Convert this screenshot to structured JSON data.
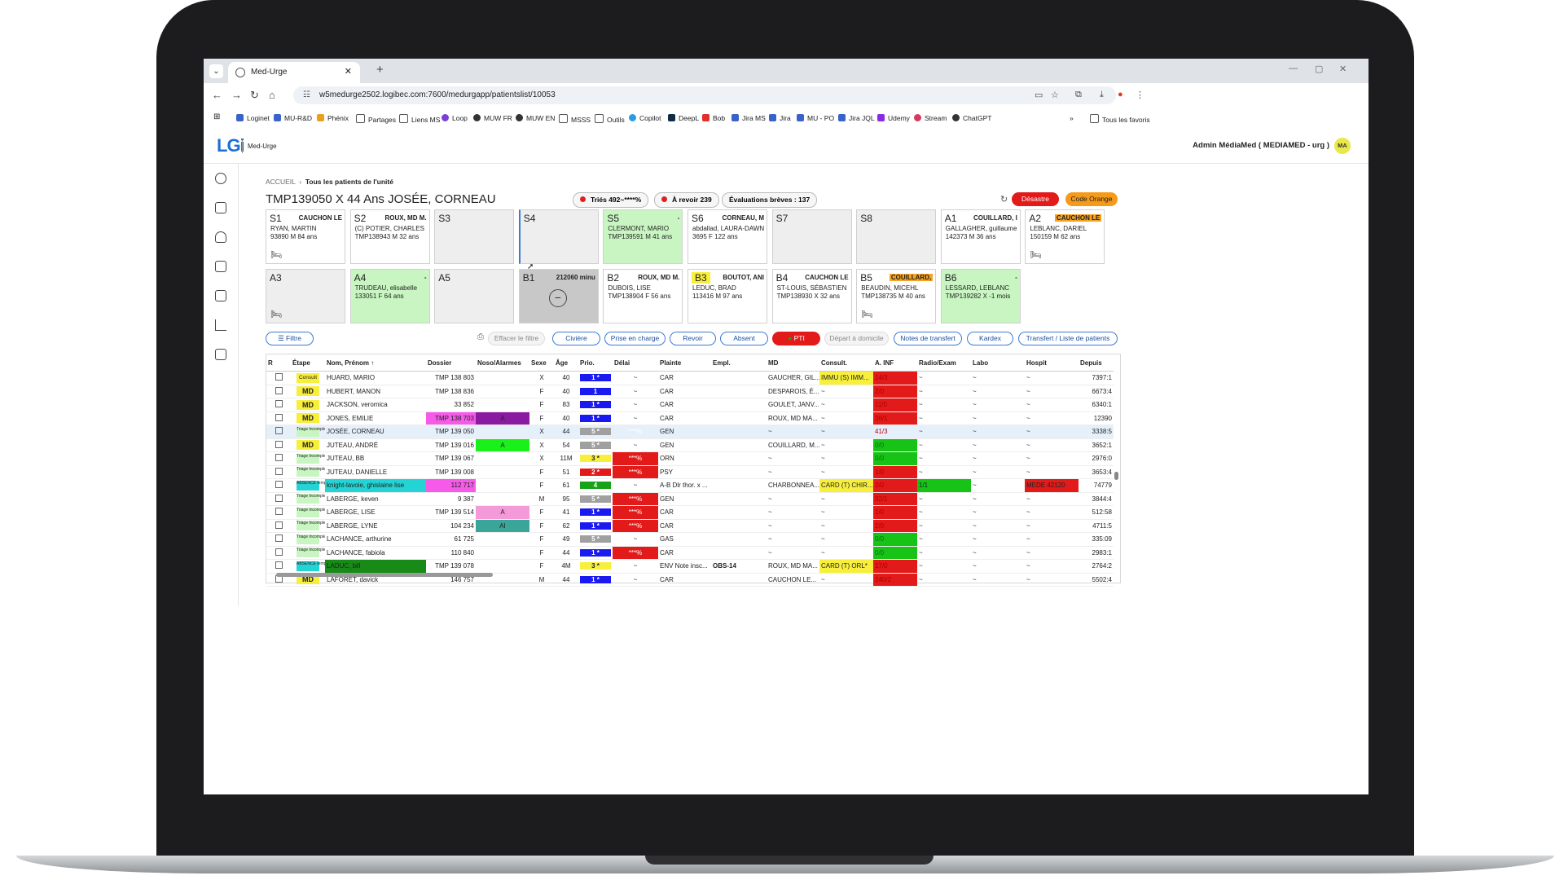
{
  "browser": {
    "tab_title": "Med-Urge",
    "url": "w5medurge2502.logibec.com:7600/medurgapp/patientslist/10053",
    "bookmarks": [
      "Loginet",
      "MU-R&D",
      "Phénix",
      "Partages",
      "Liens MS",
      "Loop",
      "MUW FR",
      "MUW EN",
      "MSSS",
      "Outils",
      "Copilot",
      "DeepL",
      "Bob",
      "Jira MS",
      "Jira",
      "MU - PO",
      "Jira JQL",
      "Udemy",
      "Stream",
      "ChatGPT"
    ],
    "all_favorites": "Tous les favoris"
  },
  "app": {
    "logo": "LGi",
    "name": "Med-Urge",
    "user": "Admin MédiaMed ( MEDIAMED - urg )",
    "avatar": "MA"
  },
  "breadcrumb": {
    "home": "ACCUEIL",
    "current": "Tous les patients de l'unité"
  },
  "page_title": "TMP139050 X 44 Ans JOSÉE, CORNEAU",
  "pills": {
    "tries": "Triés 492~****%",
    "revoir": "À revoir 239",
    "evaluations": "Évaluations brèves : 137"
  },
  "buttons": {
    "desastre": "Désastre",
    "code_orange": "Code Orange"
  },
  "beds_row1": [
    {
      "code": "S1",
      "doc": "CAUCHON LE",
      "l1": "RYAN, MARTIN",
      "l2": "93890    M  84 ans",
      "state": "normal",
      "icon": true
    },
    {
      "code": "S2",
      "doc": "ROUX, MD M.",
      "l1": "(C) POTIER, CHARLES",
      "l2": "TMP138943   M  32 ans",
      "state": "normal",
      "icon": false
    },
    {
      "code": "S3",
      "doc": "",
      "l1": "",
      "l2": "",
      "state": "empty",
      "icon": false
    },
    {
      "code": "S4",
      "doc": "",
      "l1": "",
      "l2": "",
      "state": "empty",
      "icon": false
    },
    {
      "code": "S5",
      "doc": "-",
      "l1": "CLERMONT, MARIO",
      "l2": "TMP139591   M  41 ans",
      "state": "green",
      "icon": false
    },
    {
      "code": "S6",
      "doc": "CORNEAU, M",
      "l1": "abdallad, LAURA-DAWN",
      "l2": "3695     F  122 ans",
      "state": "normal",
      "icon": false
    },
    {
      "code": "S7",
      "doc": "",
      "l1": "",
      "l2": "",
      "state": "empty",
      "icon": false
    },
    {
      "code": "S8",
      "doc": "",
      "l1": "",
      "l2": "",
      "state": "empty",
      "icon": false
    },
    {
      "code": "A1",
      "doc": "COUILLARD, I",
      "l1": "GALLAGHER, guillaume",
      "l2": "142373    M  36 ans",
      "state": "normal",
      "icon": false
    },
    {
      "code": "A2",
      "doc": "CAUCHON LE",
      "l1": "LEBLANC, DARIEL",
      "l2": "150159    M  62 ans",
      "state": "normal",
      "icon": true,
      "doc_color": "orange"
    }
  ],
  "beds_row2": [
    {
      "code": "A3",
      "doc": "",
      "l1": "",
      "l2": "",
      "state": "empty",
      "icon": true
    },
    {
      "code": "A4",
      "doc": "-",
      "l1": "TRUDEAU, elisabelle",
      "l2": "133051    F  64 ans",
      "state": "green",
      "icon": false
    },
    {
      "code": "A5",
      "doc": "",
      "l1": "",
      "l2": "",
      "state": "empty",
      "icon": false
    },
    {
      "code": "B1",
      "doc": "212060 minu",
      "l1": "",
      "l2": "",
      "state": "gray",
      "icon": false
    },
    {
      "code": "B2",
      "doc": "ROUX, MD M.",
      "l1": "DUBOIS, LISE",
      "l2": "TMP138904   F  56 ans",
      "state": "normal",
      "icon": false
    },
    {
      "code": "B3",
      "doc": "BOUTOT, ANI",
      "l1": "LEDUC, BRAD",
      "l2": "113416    M  97 ans",
      "state": "normal",
      "icon": false,
      "code_color": "yellow"
    },
    {
      "code": "B4",
      "doc": "CAUCHON LE",
      "l1": "ST-LOUIS, SÉBASTIEN",
      "l2": "TMP138930   X  32 ans",
      "state": "normal",
      "icon": false
    },
    {
      "code": "B5",
      "doc": "COUILLARD,",
      "l1": "BEAUDIN, MICEHL",
      "l2": "TMP138735   M  40 ans",
      "state": "normal",
      "icon": true,
      "doc_color": "orange"
    },
    {
      "code": "B6",
      "doc": "-",
      "l1": "LESSARD, LEBLANC",
      "l2": "TMP139282   X  -1 mois",
      "state": "green",
      "icon": false
    }
  ],
  "filters": {
    "filtre": "Filtre",
    "effacer": "Effacer le filtre",
    "civiere": "Civière",
    "prise": "Prise en charge",
    "revoir": "Revoir",
    "absent": "Absent",
    "pti": "PTI",
    "depart": "Départ à domicile",
    "notes": "Notes de transfert",
    "kardex": "Kardex",
    "transfert": "Transfert / Liste de patients"
  },
  "columns": [
    "R",
    "Étape",
    "Nom, Prénom ↑",
    "Dossier",
    "Noso/Alarmes",
    "Sexe",
    "Âge",
    "Prio.",
    "Délai",
    "Plainte",
    "Empl.",
    "MD",
    "Consult.",
    "A. INF",
    "Radio/Exam",
    "Labo",
    "Hospit",
    "Depuis"
  ],
  "rows": [
    {
      "etape": "Consult",
      "nom": "HUARD, MARIO",
      "dossier": "TMP 138 803",
      "noso": "",
      "sexe": "X",
      "age": "40",
      "prio": "1 *",
      "prio_c": "blue",
      "delai": "~",
      "plainte": "CAR",
      "empl": "",
      "md": "GAUCHER, GIL...",
      "consult": "IMMU (S) IMM...",
      "ainf": "14/3",
      "ainf_c": "red",
      "radio": "~",
      "labo": "~",
      "hospit": "~",
      "depuis": "7397:1"
    },
    {
      "etape": "MD",
      "nom": "HUBERT, MANON",
      "dossier": "TMP 138 836",
      "noso": "",
      "sexe": "F",
      "age": "40",
      "prio": "1",
      "prio_c": "blue",
      "delai": "~",
      "plainte": "CAR",
      "empl": "",
      "md": "DESPAROIS, É...",
      "consult": "~",
      "ainf": "2/0",
      "ainf_c": "red",
      "radio": "~",
      "labo": "~",
      "hospit": "~",
      "depuis": "6673:4"
    },
    {
      "etape": "MD",
      "nom": "JACKSON, veromica",
      "dossier": "33 852",
      "noso": "",
      "sexe": "F",
      "age": "83",
      "prio": "1 *",
      "prio_c": "blue",
      "delai": "~",
      "plainte": "CAR",
      "empl": "",
      "md": "GOULET, JANV...",
      "consult": "~",
      "ainf": "11/0",
      "ainf_c": "red",
      "radio": "~",
      "labo": "~",
      "hospit": "~",
      "depuis": "6340:1"
    },
    {
      "etape": "MD",
      "nom": "JONES, EMILIE",
      "dossier": "TMP 138 703",
      "noso": "A",
      "sexe": "F",
      "age": "40",
      "prio": "1 *",
      "prio_c": "blue",
      "delai": "~",
      "plainte": "CAR",
      "empl": "",
      "md": "ROUX, MD MA...",
      "consult": "~",
      "ainf": "36/1",
      "ainf_c": "red",
      "radio": "~",
      "labo": "~",
      "hospit": "~",
      "depuis": "12390",
      "dossier_c": "#f55be8",
      "noso_c": "#8a1aa0"
    },
    {
      "etape": "Triage Incomplet",
      "nom": "JOSÉE, CORNEAU",
      "dossier": "TMP 139 050",
      "noso": "",
      "sexe": "X",
      "age": "44",
      "prio": "5 *",
      "prio_c": "gray",
      "delai": "***%",
      "delai_c": "red",
      "plainte": "GEN",
      "empl": "",
      "md": "~",
      "consult": "~",
      "ainf": "41/3",
      "ainf_c": "red",
      "radio": "~",
      "labo": "~",
      "hospit": "~",
      "depuis": "3338:5",
      "selected": true
    },
    {
      "etape": "MD",
      "nom": "JUTEAU, ANDRÉ",
      "dossier": "TMP 139 016",
      "noso": "A",
      "sexe": "X",
      "age": "54",
      "prio": "5 *",
      "prio_c": "gray",
      "delai": "~",
      "plainte": "GEN",
      "empl": "",
      "md": "COUILLARD, M...",
      "consult": "~",
      "ainf": "0/0",
      "ainf_c": "green",
      "radio": "~",
      "labo": "~",
      "hospit": "~",
      "depuis": "3652:1",
      "noso_c": "#1af01a"
    },
    {
      "etape": "Triage Incomplet",
      "nom": "JUTEAU, BB",
      "dossier": "TMP 139 067",
      "noso": "",
      "sexe": "X",
      "age": "11M",
      "prio": "3 *",
      "prio_c": "yellow",
      "delai": "***%",
      "delai_c": "red",
      "plainte": "ORN",
      "empl": "",
      "md": "~",
      "consult": "~",
      "ainf": "0/0",
      "ainf_c": "green",
      "radio": "~",
      "labo": "~",
      "hospit": "~",
      "depuis": "2976:0"
    },
    {
      "etape": "Triage Incomplet",
      "nom": "JUTEAU, DANIELLE",
      "dossier": "TMP 139 008",
      "noso": "",
      "sexe": "F",
      "age": "51",
      "prio": "2 *",
      "prio_c": "red",
      "delai": "***%",
      "delai_c": "red",
      "plainte": "PSY",
      "empl": "",
      "md": "~",
      "consult": "~",
      "ainf": "1/0",
      "ainf_c": "red",
      "radio": "~",
      "labo": "~",
      "hospit": "~",
      "depuis": "3653:4"
    },
    {
      "etape": "ABSENCE temporaire",
      "nom": "knight-lavoie, ghislaine lise",
      "dossier": "112 717",
      "noso": "",
      "sexe": "F",
      "age": "61",
      "prio": "4",
      "prio_c": "green",
      "delai": "~",
      "plainte": "A-B Dlr thor. x ...",
      "empl": "",
      "md": "CHARBONNEA...",
      "consult": "CARD (T) CHIR...",
      "ainf": "2/0",
      "ainf_c": "red",
      "radio": "1/1",
      "radio_c": "#17c317",
      "labo": "~",
      "hospit": "MEDE 42120",
      "hospit_c": "#e21a1a",
      "depuis": "74779",
      "nom_c": "#24d4d4",
      "dossier_c": "#f55be8"
    },
    {
      "etape": "Triage Incomplet",
      "nom": "LABERGE, keven",
      "dossier": "9 387",
      "noso": "",
      "sexe": "M",
      "age": "95",
      "prio": "5 *",
      "prio_c": "gray",
      "delai": "***%",
      "delai_c": "red",
      "plainte": "GEN",
      "empl": "",
      "md": "~",
      "consult": "~",
      "ainf": "32/1",
      "ainf_c": "red",
      "radio": "~",
      "labo": "~",
      "hospit": "~",
      "depuis": "3844:4"
    },
    {
      "etape": "Triage Incomplet",
      "nom": "LABERGE, LISE",
      "dossier": "TMP 139 514",
      "noso": "A",
      "sexe": "F",
      "age": "41",
      "prio": "1 *",
      "prio_c": "blue",
      "delai": "***%",
      "delai_c": "red",
      "plainte": "CAR",
      "empl": "",
      "md": "~",
      "consult": "~",
      "ainf": "1/0",
      "ainf_c": "red",
      "radio": "~",
      "labo": "~",
      "hospit": "~",
      "depuis": "512:58",
      "noso_c": "#f59ad8"
    },
    {
      "etape": "Triage Incomplet",
      "nom": "LABERGE, LYNE",
      "dossier": "104 234",
      "noso": "AI",
      "sexe": "F",
      "age": "62",
      "prio": "1 *",
      "prio_c": "blue",
      "delai": "***%",
      "delai_c": "red",
      "plainte": "CAR",
      "empl": "",
      "md": "~",
      "consult": "~",
      "ainf": "2/0",
      "ainf_c": "red",
      "radio": "~",
      "labo": "~",
      "hospit": "~",
      "depuis": "4711:5",
      "noso_c": "#3aa69a"
    },
    {
      "etape": "Triage Incomplet",
      "nom": "LACHANCE, arthurine",
      "dossier": "61 725",
      "noso": "",
      "sexe": "F",
      "age": "49",
      "prio": "5 *",
      "prio_c": "gray",
      "delai": "~",
      "plainte": "GAS",
      "empl": "",
      "md": "~",
      "consult": "~",
      "ainf": "0/0",
      "ainf_c": "green",
      "radio": "~",
      "labo": "~",
      "hospit": "~",
      "depuis": "335:09"
    },
    {
      "etape": "Triage Incomplet",
      "nom": "LACHANCE, fabiola",
      "dossier": "110 840",
      "noso": "",
      "sexe": "F",
      "age": "44",
      "prio": "1 *",
      "prio_c": "blue",
      "delai": "***%",
      "delai_c": "red",
      "plainte": "CAR",
      "empl": "",
      "md": "~",
      "consult": "~",
      "ainf": "0/0",
      "ainf_c": "green",
      "radio": "~",
      "labo": "~",
      "hospit": "~",
      "depuis": "2983:1"
    },
    {
      "etape": "ABSENCE temporaire",
      "nom": "LADUC, bill",
      "dossier": "TMP 139 078",
      "noso": "",
      "sexe": "F",
      "age": "4M",
      "prio": "3 *",
      "prio_c": "yellow",
      "delai": "~",
      "plainte": "ENV Note insc...",
      "empl": "OBS-14",
      "md": "ROUX, MD MA...",
      "consult": "CARD (T) ORL*",
      "ainf": "17/0",
      "ainf_c": "red",
      "radio": "~",
      "labo": "~",
      "hospit": "~",
      "depuis": "2764:2",
      "nom_c": "#178a17"
    },
    {
      "etape": "MD",
      "nom": "LAFORET, davick",
      "dossier": "146 757",
      "noso": "",
      "sexe": "M",
      "age": "44",
      "prio": "1 *",
      "prio_c": "blue",
      "delai": "~",
      "plainte": "CAR",
      "empl": "",
      "md": "CAUCHON LE...",
      "consult": "~",
      "ainf": "240/2",
      "ainf_c": "red",
      "radio": "~",
      "labo": "~",
      "hospit": "~",
      "depuis": "5502:4"
    }
  ]
}
